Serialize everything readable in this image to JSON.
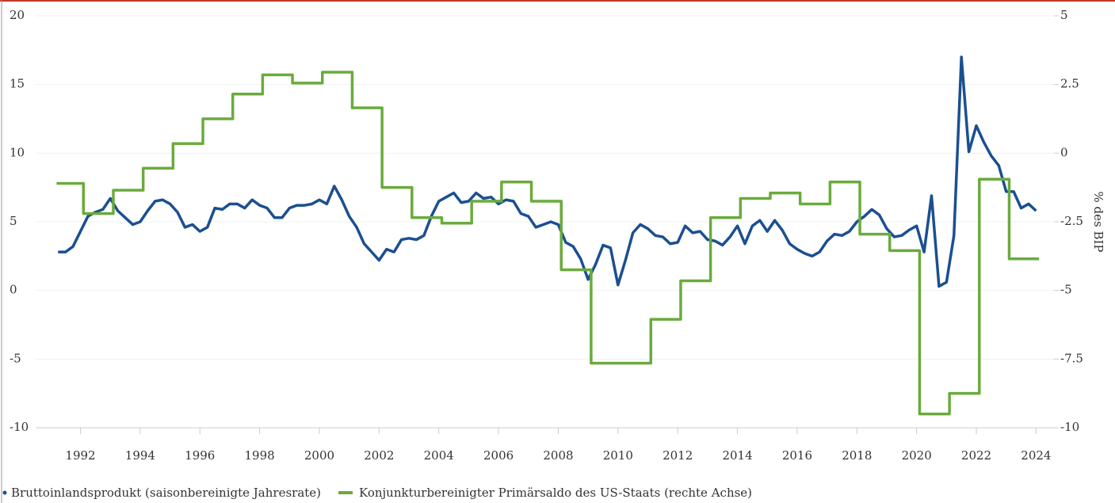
{
  "chart_data": {
    "type": "line",
    "y2label": "% des BIP",
    "xlim": [
      1990.5,
      2024.6
    ],
    "xticks": [
      1992,
      1994,
      1996,
      1998,
      2000,
      2002,
      2004,
      2006,
      2008,
      2010,
      2012,
      2014,
      2016,
      2018,
      2020,
      2022,
      2024
    ],
    "ylim": [
      -10,
      20
    ],
    "yticks": [
      -10,
      -5,
      0,
      5,
      10,
      15,
      20
    ],
    "y2lim": [
      -10,
      5
    ],
    "y2ticks": [
      -10,
      -7.5,
      -5,
      -2.5,
      0,
      2.5,
      5
    ],
    "grid": true,
    "legend": "bottom",
    "series": [
      {
        "name": "Bruttoinlandsprodukt (saisonbereinigte Jahresrate)",
        "color": "#1b4f91",
        "x": [
          1991.25,
          1991.5,
          1991.75,
          1992,
          1992.25,
          1992.5,
          1992.75,
          1993,
          1993.25,
          1993.5,
          1993.75,
          1994,
          1994.25,
          1994.5,
          1994.75,
          1995,
          1995.25,
          1995.5,
          1995.75,
          1996,
          1996.25,
          1996.5,
          1996.75,
          1997,
          1997.25,
          1997.5,
          1997.75,
          1998,
          1998.25,
          1998.5,
          1998.75,
          1999,
          1999.25,
          1999.5,
          1999.75,
          2000,
          2000.25,
          2000.5,
          2000.75,
          2001,
          2001.25,
          2001.5,
          2001.75,
          2002,
          2002.25,
          2002.5,
          2002.75,
          2003,
          2003.25,
          2003.5,
          2003.75,
          2004,
          2004.25,
          2004.5,
          2004.75,
          2005,
          2005.25,
          2005.5,
          2005.75,
          2006,
          2006.25,
          2006.5,
          2006.75,
          2007,
          2007.25,
          2007.5,
          2007.75,
          2008,
          2008.25,
          2008.5,
          2008.75,
          2009,
          2009.25,
          2009.5,
          2009.75,
          2010,
          2010.25,
          2010.5,
          2010.75,
          2011,
          2011.25,
          2011.5,
          2011.75,
          2012,
          2012.25,
          2012.5,
          2012.75,
          2013,
          2013.25,
          2013.5,
          2013.75,
          2014,
          2014.25,
          2014.5,
          2014.75,
          2015,
          2015.25,
          2015.5,
          2015.75,
          2016,
          2016.25,
          2016.5,
          2016.75,
          2017,
          2017.25,
          2017.5,
          2017.75,
          2018,
          2018.25,
          2018.5,
          2018.75,
          2019,
          2019.25,
          2019.5,
          2019.75,
          2020,
          2020.25,
          2020.5,
          2020.75,
          2021,
          2021.25,
          2021.5,
          2021.75,
          2022,
          2022.25,
          2022.5,
          2022.75,
          2023,
          2023.25,
          2023.5,
          2023.75,
          2024
        ],
        "values": [
          2.8,
          2.8,
          3.2,
          4.3,
          5.4,
          5.7,
          5.9,
          6.7,
          5.8,
          5.3,
          4.8,
          5.0,
          5.8,
          6.5,
          6.6,
          6.3,
          5.7,
          4.6,
          4.8,
          4.3,
          4.6,
          6.0,
          5.9,
          6.3,
          6.3,
          6.0,
          6.6,
          6.2,
          6.0,
          5.3,
          5.3,
          6.0,
          6.2,
          6.2,
          6.3,
          6.6,
          6.3,
          7.6,
          6.6,
          5.4,
          4.6,
          3.4,
          2.8,
          2.2,
          3.0,
          2.8,
          3.7,
          3.8,
          3.7,
          4.0,
          5.4,
          6.5,
          6.8,
          7.1,
          6.4,
          6.5,
          7.1,
          6.7,
          6.8,
          6.3,
          6.6,
          6.5,
          5.6,
          5.4,
          4.6,
          4.8,
          5.0,
          4.8,
          3.5,
          3.2,
          2.3,
          0.8,
          1.9,
          3.3,
          3.1,
          0.4,
          2.2,
          4.2,
          4.8,
          4.5,
          4.0,
          3.9,
          3.4,
          3.5,
          4.7,
          4.2,
          4.3,
          3.7,
          3.6,
          3.3,
          3.9,
          4.7,
          3.4,
          4.7,
          5.1,
          4.3,
          5.1,
          4.4,
          3.4,
          3.0,
          2.7,
          2.5,
          2.8,
          3.6,
          4.1,
          4.0,
          4.3,
          5.0,
          5.4,
          5.9,
          5.5,
          4.5,
          3.9,
          4.0,
          4.4,
          4.7,
          2.8,
          6.9,
          0.3,
          0.6,
          4.0,
          17.0,
          10.1,
          12.0,
          10.8,
          9.8,
          9.1,
          7.2,
          7.2,
          6.0,
          6.3,
          5.8
        ]
      },
      {
        "name": "Konjunkturbereinigter Primärsaldo des US-Staats (rechte Achse)",
        "color": "#6aab3c",
        "axis": "y2",
        "drawstyle": "steps-post",
        "x": [
          1991.2,
          1992.1,
          1993.1,
          1994.1,
          1995.1,
          1996.1,
          1997.1,
          1998.1,
          1999.1,
          2000.1,
          2001.1,
          2002.1,
          2003.1,
          2004.1,
          2005.1,
          2006.1,
          2007.1,
          2008.1,
          2009.1,
          2011.1,
          2012.1,
          2013.1,
          2014.1,
          2015.1,
          2016.1,
          2017.1,
          2018.1,
          2019.1,
          2020.1,
          2021.1,
          2022.1,
          2023.1,
          2024.1
        ],
        "values": [
          -1.1,
          -2.2,
          -1.35,
          -0.55,
          0.35,
          1.25,
          2.15,
          2.85,
          2.55,
          2.95,
          1.65,
          -1.25,
          -2.35,
          -2.55,
          -1.75,
          -1.05,
          -1.75,
          -4.25,
          -7.65,
          -6.05,
          -4.65,
          -2.35,
          -1.65,
          -1.45,
          -1.85,
          -1.05,
          -2.95,
          -3.55,
          -9.5,
          -8.75,
          -0.95,
          -3.85,
          -3.85
        ]
      }
    ]
  }
}
